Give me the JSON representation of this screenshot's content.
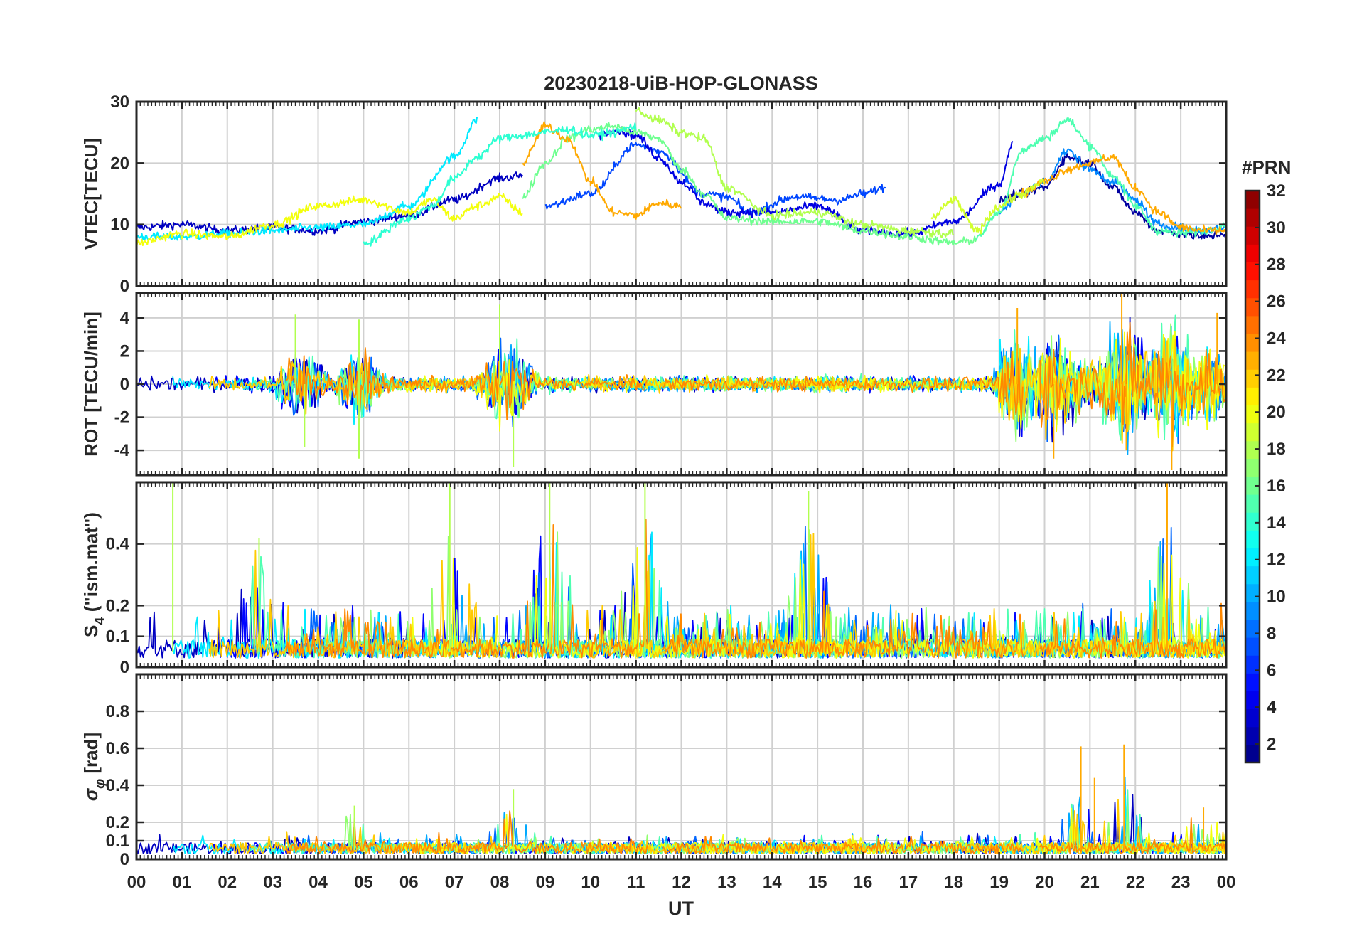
{
  "chart_data": {
    "type": "line",
    "title": "20230218-UiB-HOP-GLONASS",
    "xlabel": "UT",
    "x_tick_labels": [
      "00",
      "01",
      "02",
      "03",
      "04",
      "05",
      "06",
      "07",
      "08",
      "09",
      "10",
      "11",
      "12",
      "13",
      "14",
      "15",
      "16",
      "17",
      "18",
      "19",
      "20",
      "21",
      "22",
      "23",
      "00"
    ],
    "xlim_hours": [
      0,
      24
    ],
    "grid": true,
    "colorbar": {
      "title": "#PRN",
      "range": [
        1,
        32
      ],
      "tick_labels": [
        "2",
        "4",
        "6",
        "8",
        "10",
        "12",
        "14",
        "16",
        "18",
        "20",
        "22",
        "24",
        "26",
        "28",
        "30",
        "32"
      ],
      "colormap": "jet",
      "placement": "right"
    },
    "panels": [
      {
        "name": "vtec",
        "ylabel": "VTEC[TECU]",
        "ylim": [
          0,
          30
        ],
        "y_ticks": [
          0,
          10,
          20,
          30
        ],
        "y_tick_labels": [
          "0",
          "10",
          "20",
          "30"
        ],
        "series": [
          {
            "prn": 3,
            "x": [
              0.0,
              1.0,
              2.0,
              3.0,
              4.0,
              5.0,
              6.0,
              7.0,
              8.0,
              8.5
            ],
            "y": [
              9.5,
              10.0,
              9.0,
              9.5,
              9.0,
              10.5,
              11.5,
              14.0,
              17.5,
              18.0
            ]
          },
          {
            "prn": 12,
            "x": [
              0.0,
              1.0,
              2.0,
              3.0,
              4.0,
              5.0,
              6.0,
              7.0,
              7.5
            ],
            "y": [
              8.0,
              8.0,
              8.5,
              9.0,
              9.5,
              10.0,
              13.0,
              21.0,
              27.0
            ]
          },
          {
            "prn": 20,
            "x": [
              0.0,
              1.0,
              2.0,
              3.0,
              4.0,
              5.0,
              6.0,
              6.5,
              7.0,
              7.5,
              8.0,
              8.5
            ],
            "y": [
              7.0,
              8.5,
              8.0,
              10.0,
              13.0,
              14.0,
              12.0,
              14.0,
              11.0,
              13.0,
              14.5,
              12.0
            ]
          },
          {
            "prn": 7,
            "x": [
              9.0,
              10.0,
              11.0,
              11.5,
              12.5,
              13.0,
              13.5,
              14.5,
              15.5,
              16.0,
              16.5
            ],
            "y": [
              13.0,
              15.0,
              23.0,
              22.0,
              15.0,
              14.5,
              12.0,
              14.5,
              14.0,
              15.0,
              16.0
            ]
          },
          {
            "prn": 4,
            "x": [
              10.2,
              10.5,
              11.0,
              11.5,
              12.0,
              12.5,
              13.0,
              14.0,
              15.0,
              16.0,
              17.0,
              18.0,
              19.0,
              19.3
            ],
            "y": [
              24.5,
              25.5,
              24.5,
              21.0,
              17.0,
              13.5,
              12.0,
              12.0,
              13.0,
              9.0,
              8.5,
              10.5,
              16.5,
              23.0
            ]
          },
          {
            "prn": 16,
            "x": [
              8.5,
              9.0,
              9.5,
              10.0,
              10.5,
              11.0,
              11.5,
              12.0,
              12.5,
              13.0,
              14.0,
              15.0,
              16.0,
              17.0,
              18.0,
              18.5
            ],
            "y": [
              14.5,
              20.0,
              24.0,
              25.5,
              26.0,
              25.0,
              24.0,
              19.0,
              15.0,
              11.0,
              10.5,
              10.5,
              9.0,
              8.0,
              7.0,
              7.5
            ]
          },
          {
            "prn": 23,
            "x": [
              8.5,
              9.0,
              9.5,
              10.0,
              10.5,
              11.0,
              11.5,
              12.0
            ],
            "y": [
              20.0,
              26.0,
              24.0,
              17.0,
              12.0,
              11.5,
              13.5,
              13.0
            ]
          },
          {
            "prn": 14,
            "x": [
              5.0,
              6.0,
              6.5,
              7.0,
              7.5,
              8.0,
              8.5,
              9.0,
              9.5,
              10.0,
              10.5,
              11.0
            ],
            "y": [
              7.0,
              11.0,
              13.0,
              17.5,
              21.0,
              24.0,
              24.5,
              25.0,
              25.5,
              24.5,
              25.0,
              26.0
            ]
          },
          {
            "prn": 18,
            "x": [
              11.0,
              11.5,
              12.0,
              12.5,
              13.0,
              14.0,
              15.0,
              16.0,
              17.0,
              18.0
            ],
            "y": [
              28.5,
              27.0,
              25.0,
              24.0,
              16.0,
              11.5,
              12.0,
              10.0,
              9.0,
              8.5
            ]
          },
          {
            "prn": 2,
            "x": [
              19.0,
              19.5,
              20.0,
              20.5,
              21.0,
              21.5,
              22.0,
              22.5,
              23.0,
              23.5,
              24.0
            ],
            "y": [
              14.0,
              15.0,
              16.0,
              21.0,
              20.0,
              16.0,
              12.0,
              9.0,
              8.5,
              8.0,
              8.5
            ]
          },
          {
            "prn": 9,
            "x": [
              19.0,
              19.5,
              20.0,
              20.5,
              21.0,
              21.5,
              22.0,
              22.5,
              23.0,
              23.5,
              24.0
            ],
            "y": [
              12.0,
              15.0,
              17.0,
              22.0,
              19.0,
              17.0,
              14.0,
              10.0,
              9.5,
              9.0,
              9.5
            ]
          },
          {
            "prn": 15,
            "x": [
              18.5,
              19.0,
              19.5,
              20.0,
              20.5,
              21.0,
              21.5,
              22.0,
              22.5,
              23.0,
              23.5,
              24.0
            ],
            "y": [
              8.0,
              12.0,
              22.0,
              24.0,
              27.0,
              23.0,
              18.0,
              13.0,
              9.0,
              8.5,
              9.0,
              10.0
            ]
          },
          {
            "prn": 23,
            "x": [
              19.5,
              20.0,
              20.5,
              21.0,
              21.5,
              22.0,
              22.5,
              23.0,
              23.5,
              24.0
            ],
            "y": [
              15.0,
              17.0,
              19.0,
              20.0,
              21.0,
              16.0,
              12.0,
              9.5,
              9.0,
              9.0
            ]
          },
          {
            "prn": 19,
            "x": [
              17.5,
              18.0,
              18.5,
              19.0,
              19.5,
              20.0
            ],
            "y": [
              11.0,
              14.0,
              9.0,
              13.0,
              15.0,
              17.0
            ]
          }
        ]
      },
      {
        "name": "rot",
        "ylabel": "ROT [TECU/min]",
        "ylim": [
          -5.5,
          5.5
        ],
        "y_ticks": [
          -4,
          -2,
          0,
          2,
          4
        ],
        "y_tick_labels": [
          "-4",
          "-2",
          "0",
          "2",
          "4"
        ],
        "series_summary": "ROT fluctuates around 0 for all PRNs; strongest spikes near 03:30-05:00 (up to ±4.5), 08:00 (±5), and 19:30-23:30 (±5).",
        "peaks": [
          {
            "x": 3.5,
            "y": 4.2
          },
          {
            "x": 3.7,
            "y": -3.8
          },
          {
            "x": 4.9,
            "y": 3.9
          },
          {
            "x": 4.9,
            "y": -4.5
          },
          {
            "x": 8.0,
            "y": 4.8
          },
          {
            "x": 8.3,
            "y": -5.0
          },
          {
            "x": 19.4,
            "y": 4.6
          },
          {
            "x": 20.2,
            "y": -4.5
          },
          {
            "x": 21.7,
            "y": 5.5
          },
          {
            "x": 21.8,
            "y": -4.0
          },
          {
            "x": 22.8,
            "y": -5.2
          },
          {
            "x": 23.8,
            "y": 4.3
          }
        ]
      },
      {
        "name": "s4",
        "ylabel_base": "S",
        "ylabel_sub": "4",
        "ylabel_rest": "(\"ism.mat\")",
        "ylim": [
          0,
          0.6
        ],
        "y_ticks": [
          0,
          0.1,
          0.2,
          0.4
        ],
        "y_tick_labels": [
          "0",
          "0.1",
          "0.2",
          "0.4"
        ],
        "series_summary": "S4 mostly below 0.1 with bursts between 0.2 and 0.6; largest bursts near 00:50, 07:00, 09:00, 11:00 and 14:50.",
        "peaks": [
          {
            "x": 0.8,
            "y": 0.6
          },
          {
            "x": 2.7,
            "y": 0.42
          },
          {
            "x": 6.9,
            "y": 0.6
          },
          {
            "x": 9.1,
            "y": 0.6
          },
          {
            "x": 11.2,
            "y": 0.6
          },
          {
            "x": 14.8,
            "y": 0.57
          },
          {
            "x": 22.7,
            "y": 0.6
          }
        ]
      },
      {
        "name": "sigma_phi",
        "ylabel_base": "σ",
        "ylabel_sub": "φ",
        "ylabel_rest": "[rad]",
        "ylim": [
          0,
          1.0
        ],
        "y_ticks": [
          0,
          0.1,
          0.2,
          0.4,
          0.6,
          0.8
        ],
        "y_tick_labels": [
          "0",
          "0.1",
          "0.2",
          "0.4",
          "0.6",
          "0.8"
        ],
        "series_summary": "Phase scintillation mostly 0.02-0.15 rad; spikes near 08:20 (0.38), 20:50 (0.61) and 21:45 (0.62).",
        "peaks": [
          {
            "x": 4.8,
            "y": 0.29
          },
          {
            "x": 8.3,
            "y": 0.38
          },
          {
            "x": 20.8,
            "y": 0.61
          },
          {
            "x": 21.1,
            "y": 0.44
          },
          {
            "x": 21.75,
            "y": 0.62
          },
          {
            "x": 23.5,
            "y": 0.28
          }
        ]
      }
    ]
  }
}
